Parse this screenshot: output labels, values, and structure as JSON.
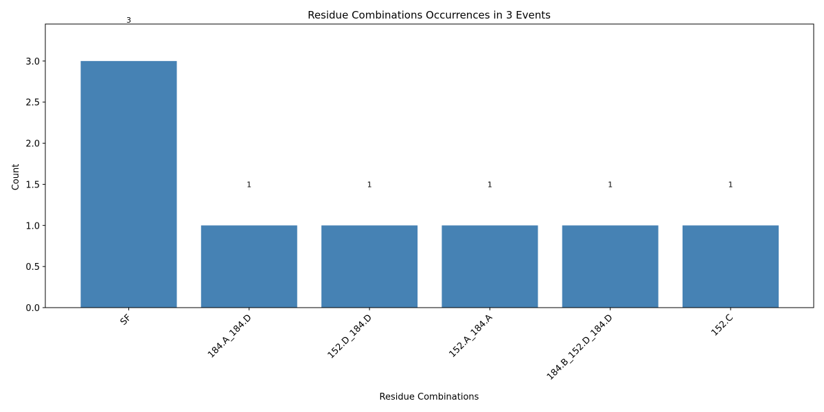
{
  "chart_data": {
    "type": "bar",
    "title": "Residue Combinations Occurrences in 3 Events",
    "xlabel": "Residue Combinations",
    "ylabel": "Count",
    "categories": [
      "SF",
      "184.A_184.D",
      "152.D_184.D",
      "152.A_184.A",
      "184.B_152.D_184.D",
      "152.C"
    ],
    "values": [
      3,
      1,
      1,
      1,
      1,
      1
    ],
    "data_labels": [
      "3",
      "1",
      "1",
      "1",
      "1",
      "1"
    ],
    "ylim": [
      0,
      3.45
    ],
    "yticks": [
      0.0,
      0.5,
      1.0,
      1.5,
      2.0,
      2.5,
      3.0
    ],
    "ytick_labels": [
      "0.0",
      "0.5",
      "1.0",
      "1.5",
      "2.0",
      "2.5",
      "3.0"
    ],
    "bar_color": "#4682b4",
    "grid": false,
    "legend": "none",
    "xtick_rotation": 45
  }
}
